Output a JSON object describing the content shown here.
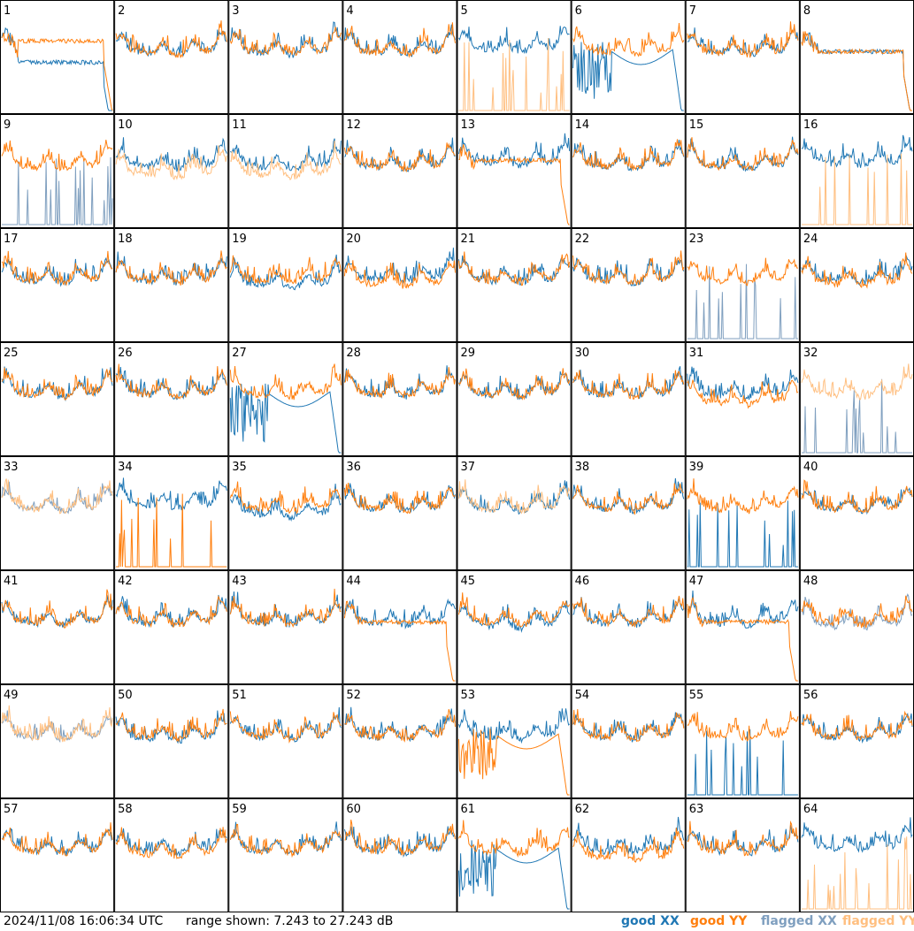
{
  "footer": {
    "timestamp": "2024/11/08 16:06:34 UTC",
    "range": "range shown: 7.243 to 27.243 dB",
    "legend": [
      {
        "label": "good XX",
        "color": "#1f77b4"
      },
      {
        "label": "good YY",
        "color": "#ff7f0e"
      },
      {
        "label": "flagged XX",
        "color": "#7f9fbf"
      },
      {
        "label": "flagged YY",
        "color": "#ffbf80"
      }
    ]
  },
  "chart_data": {
    "type": "line",
    "description_units": "dB",
    "ylim": [
      7.243,
      27.243
    ],
    "grid_layout": "8x8",
    "colors": {
      "good_xx": "#1f77b4",
      "good_yy": "#ff7f0e",
      "flagged_xx": "#7f9fbf",
      "flagged_yy": "#ffbf80"
    },
    "panels": [
      {
        "id": "1",
        "xx": {
          "flag": false,
          "shape": "sag",
          "level": 0.55
        },
        "yy": {
          "flag": false,
          "shape": "sag",
          "level": 0.35
        }
      },
      {
        "id": "2",
        "xx": {
          "flag": false,
          "shape": "std"
        },
        "yy": {
          "flag": false,
          "shape": "std"
        }
      },
      {
        "id": "3",
        "xx": {
          "flag": false,
          "shape": "std"
        },
        "yy": {
          "flag": false,
          "shape": "std"
        }
      },
      {
        "id": "4",
        "xx": {
          "flag": false,
          "shape": "std"
        },
        "yy": {
          "flag": false,
          "shape": "std"
        }
      },
      {
        "id": "5",
        "xx": {
          "flag": false,
          "shape": "std",
          "level": 0.1
        },
        "yy": {
          "flag": true,
          "shape": "spikes"
        }
      },
      {
        "id": "6",
        "xx": {
          "flag": false,
          "shape": "decay"
        },
        "yy": {
          "flag": false,
          "shape": "std"
        }
      },
      {
        "id": "7",
        "xx": {
          "flag": false,
          "shape": "std"
        },
        "yy": {
          "flag": false,
          "shape": "std"
        }
      },
      {
        "id": "8",
        "xx": {
          "flag": false,
          "shape": "sag",
          "level": 0.45
        },
        "yy": {
          "flag": false,
          "shape": "sag",
          "level": 0.45
        }
      },
      {
        "id": "9",
        "xx": {
          "flag": true,
          "shape": "spikes"
        },
        "yy": {
          "flag": false,
          "shape": "std"
        }
      },
      {
        "id": "10",
        "xx": {
          "flag": false,
          "shape": "std"
        },
        "yy": {
          "flag": true,
          "shape": "std",
          "level": -0.25
        }
      },
      {
        "id": "11",
        "xx": {
          "flag": false,
          "shape": "std"
        },
        "yy": {
          "flag": true,
          "shape": "std",
          "level": -0.25
        }
      },
      {
        "id": "12",
        "xx": {
          "flag": false,
          "shape": "std"
        },
        "yy": {
          "flag": false,
          "shape": "std"
        }
      },
      {
        "id": "13",
        "xx": {
          "flag": false,
          "shape": "std",
          "level": 0.1
        },
        "yy": {
          "flag": false,
          "shape": "sag",
          "level": 0.4
        }
      },
      {
        "id": "14",
        "xx": {
          "flag": false,
          "shape": "std"
        },
        "yy": {
          "flag": false,
          "shape": "std"
        }
      },
      {
        "id": "15",
        "xx": {
          "flag": false,
          "shape": "std"
        },
        "yy": {
          "flag": false,
          "shape": "std"
        }
      },
      {
        "id": "16",
        "xx": {
          "flag": false,
          "shape": "std",
          "level": 0.1
        },
        "yy": {
          "flag": true,
          "shape": "spikes"
        }
      },
      {
        "id": "17",
        "xx": {
          "flag": false,
          "shape": "std"
        },
        "yy": {
          "flag": false,
          "shape": "std"
        }
      },
      {
        "id": "18",
        "xx": {
          "flag": false,
          "shape": "std"
        },
        "yy": {
          "flag": false,
          "shape": "std"
        }
      },
      {
        "id": "19",
        "xx": {
          "flag": false,
          "shape": "std",
          "level": -0.15
        },
        "yy": {
          "flag": false,
          "shape": "std"
        }
      },
      {
        "id": "20",
        "xx": {
          "flag": false,
          "shape": "std",
          "level": 0.05
        },
        "yy": {
          "flag": false,
          "shape": "std",
          "level": -0.1
        }
      },
      {
        "id": "21",
        "xx": {
          "flag": false,
          "shape": "std"
        },
        "yy": {
          "flag": false,
          "shape": "std"
        }
      },
      {
        "id": "22",
        "xx": {
          "flag": false,
          "shape": "std"
        },
        "yy": {
          "flag": false,
          "shape": "std"
        }
      },
      {
        "id": "23",
        "xx": {
          "flag": true,
          "shape": "spikes"
        },
        "yy": {
          "flag": false,
          "shape": "std"
        }
      },
      {
        "id": "24",
        "xx": {
          "flag": false,
          "shape": "std"
        },
        "yy": {
          "flag": false,
          "shape": "std",
          "level": -0.1
        }
      },
      {
        "id": "25",
        "xx": {
          "flag": false,
          "shape": "std"
        },
        "yy": {
          "flag": false,
          "shape": "std"
        }
      },
      {
        "id": "26",
        "xx": {
          "flag": false,
          "shape": "std"
        },
        "yy": {
          "flag": false,
          "shape": "std"
        }
      },
      {
        "id": "27",
        "xx": {
          "flag": false,
          "shape": "decay"
        },
        "yy": {
          "flag": false,
          "shape": "std"
        }
      },
      {
        "id": "28",
        "xx": {
          "flag": false,
          "shape": "std"
        },
        "yy": {
          "flag": false,
          "shape": "std"
        }
      },
      {
        "id": "29",
        "xx": {
          "flag": false,
          "shape": "std"
        },
        "yy": {
          "flag": false,
          "shape": "std"
        }
      },
      {
        "id": "30",
        "xx": {
          "flag": false,
          "shape": "std"
        },
        "yy": {
          "flag": false,
          "shape": "std"
        }
      },
      {
        "id": "31",
        "xx": {
          "flag": false,
          "shape": "std"
        },
        "yy": {
          "flag": false,
          "shape": "std",
          "level": -0.25
        }
      },
      {
        "id": "32",
        "xx": {
          "flag": true,
          "shape": "spikes"
        },
        "yy": {
          "flag": true,
          "shape": "std"
        }
      },
      {
        "id": "33",
        "xx": {
          "flag": true,
          "shape": "std"
        },
        "yy": {
          "flag": true,
          "shape": "std"
        }
      },
      {
        "id": "34",
        "xx": {
          "flag": false,
          "shape": "std",
          "level": 0.1
        },
        "yy": {
          "flag": false,
          "shape": "spikes"
        }
      },
      {
        "id": "35",
        "xx": {
          "flag": false,
          "shape": "std",
          "level": -0.2
        },
        "yy": {
          "flag": false,
          "shape": "std"
        }
      },
      {
        "id": "36",
        "xx": {
          "flag": false,
          "shape": "std"
        },
        "yy": {
          "flag": false,
          "shape": "std"
        }
      },
      {
        "id": "37",
        "xx": {
          "flag": false,
          "shape": "std"
        },
        "yy": {
          "flag": true,
          "shape": "std"
        }
      },
      {
        "id": "38",
        "xx": {
          "flag": false,
          "shape": "std"
        },
        "yy": {
          "flag": false,
          "shape": "std"
        }
      },
      {
        "id": "39",
        "xx": {
          "flag": false,
          "shape": "spikes"
        },
        "yy": {
          "flag": false,
          "shape": "std"
        }
      },
      {
        "id": "40",
        "xx": {
          "flag": false,
          "shape": "std"
        },
        "yy": {
          "flag": false,
          "shape": "std"
        }
      },
      {
        "id": "41",
        "xx": {
          "flag": false,
          "shape": "std"
        },
        "yy": {
          "flag": false,
          "shape": "std"
        }
      },
      {
        "id": "42",
        "xx": {
          "flag": false,
          "shape": "std"
        },
        "yy": {
          "flag": false,
          "shape": "std"
        }
      },
      {
        "id": "43",
        "xx": {
          "flag": false,
          "shape": "std"
        },
        "yy": {
          "flag": false,
          "shape": "std"
        }
      },
      {
        "id": "44",
        "xx": {
          "flag": false,
          "shape": "std"
        },
        "yy": {
          "flag": false,
          "shape": "sag",
          "level": 0.45
        }
      },
      {
        "id": "45",
        "xx": {
          "flag": false,
          "shape": "std",
          "level": -0.1
        },
        "yy": {
          "flag": false,
          "shape": "std"
        }
      },
      {
        "id": "46",
        "xx": {
          "flag": false,
          "shape": "std"
        },
        "yy": {
          "flag": false,
          "shape": "std"
        }
      },
      {
        "id": "47",
        "xx": {
          "flag": false,
          "shape": "std"
        },
        "yy": {
          "flag": false,
          "shape": "sag",
          "level": 0.45
        }
      },
      {
        "id": "48",
        "xx": {
          "flag": true,
          "shape": "std",
          "level": -0.1
        },
        "yy": {
          "flag": false,
          "shape": "std"
        }
      },
      {
        "id": "49",
        "xx": {
          "flag": true,
          "shape": "std"
        },
        "yy": {
          "flag": true,
          "shape": "std"
        }
      },
      {
        "id": "50",
        "xx": {
          "flag": false,
          "shape": "std",
          "level": -0.05
        },
        "yy": {
          "flag": false,
          "shape": "std"
        }
      },
      {
        "id": "51",
        "xx": {
          "flag": false,
          "shape": "std"
        },
        "yy": {
          "flag": false,
          "shape": "std"
        }
      },
      {
        "id": "52",
        "xx": {
          "flag": false,
          "shape": "std"
        },
        "yy": {
          "flag": false,
          "shape": "std"
        }
      },
      {
        "id": "53",
        "xx": {
          "flag": false,
          "shape": "std"
        },
        "yy": {
          "flag": false,
          "shape": "decay"
        }
      },
      {
        "id": "54",
        "xx": {
          "flag": false,
          "shape": "std"
        },
        "yy": {
          "flag": false,
          "shape": "std"
        }
      },
      {
        "id": "55",
        "xx": {
          "flag": false,
          "shape": "spikes"
        },
        "yy": {
          "flag": false,
          "shape": "std"
        }
      },
      {
        "id": "56",
        "xx": {
          "flag": false,
          "shape": "std"
        },
        "yy": {
          "flag": false,
          "shape": "std"
        }
      },
      {
        "id": "57",
        "xx": {
          "flag": false,
          "shape": "std"
        },
        "yy": {
          "flag": false,
          "shape": "std"
        }
      },
      {
        "id": "58",
        "xx": {
          "flag": false,
          "shape": "std"
        },
        "yy": {
          "flag": false,
          "shape": "std",
          "level": -0.1
        }
      },
      {
        "id": "59",
        "xx": {
          "flag": false,
          "shape": "std"
        },
        "yy": {
          "flag": false,
          "shape": "std"
        }
      },
      {
        "id": "60",
        "xx": {
          "flag": false,
          "shape": "std"
        },
        "yy": {
          "flag": false,
          "shape": "std"
        }
      },
      {
        "id": "61",
        "xx": {
          "flag": false,
          "shape": "decay"
        },
        "yy": {
          "flag": false,
          "shape": "std"
        }
      },
      {
        "id": "62",
        "xx": {
          "flag": false,
          "shape": "std"
        },
        "yy": {
          "flag": false,
          "shape": "std",
          "level": -0.2
        }
      },
      {
        "id": "63",
        "xx": {
          "flag": false,
          "shape": "std"
        },
        "yy": {
          "flag": false,
          "shape": "std"
        }
      },
      {
        "id": "64",
        "xx": {
          "flag": false,
          "shape": "std",
          "level": 0.1
        },
        "yy": {
          "flag": true,
          "shape": "spikes"
        }
      }
    ]
  }
}
